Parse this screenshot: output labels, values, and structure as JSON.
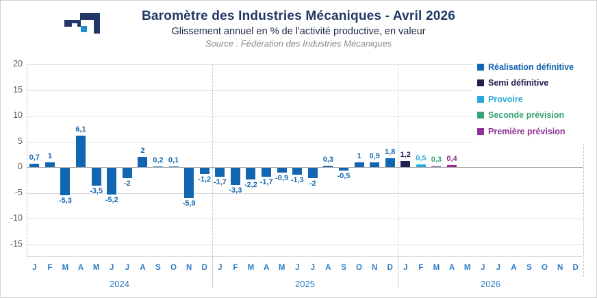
{
  "header": {
    "title": "Baromètre des Industries Mécaniques - Avril 2026",
    "subtitle": "Glissement annuel en % de l'activité productive, en valeur",
    "source": "Source : Fédération des Industries Mécaniques"
  },
  "colors": {
    "realisation_definitive": "#1166b1",
    "semi_definitive": "#211e52",
    "provisoire": "#29a8e0",
    "seconde_prevision": "#36a476",
    "premiere_prevision": "#8c3191",
    "mars_2026_bar": "#9f81c4",
    "avril_2026_bar": "#a2259c",
    "axis_text": "#595959",
    "month_text": "#2e7cc3",
    "grid": "#dcdcdc",
    "zero_line": "#b0b0b0",
    "title_text": "#1f3864",
    "source_text": "#8a8a8a",
    "logo_navy": "#203768",
    "logo_blue": "#1d8fd1"
  },
  "legend": {
    "position": "top-right",
    "items": [
      {
        "label": "Réalisation définitive",
        "series": "Réalisation définitive",
        "color_key": "realisation_definitive"
      },
      {
        "label": "Semi définitive",
        "series": "Semi définitive",
        "color_key": "semi_definitive"
      },
      {
        "label": "Provoire",
        "series": "Provoire",
        "color_key": "provisoire"
      },
      {
        "label": "Seconde prévision",
        "series": "Seconde prévision",
        "color_key": "seconde_prevision"
      },
      {
        "label": "Première prévision",
        "series": "Première prévision",
        "color_key": "premiere_prevision"
      }
    ]
  },
  "chart_data": {
    "type": "bar",
    "title": "Baromètre des Industries Mécaniques - Avril 2026",
    "subtitle": "Glissement annuel en % de l'activité productive, en valeur",
    "ylabel": "Glissement annuel en %",
    "yticks": [
      20,
      15,
      10,
      5,
      0,
      -5,
      -10,
      -15
    ],
    "ylim": [
      -17.3,
      20
    ],
    "grid": true,
    "legend_position": "top-right",
    "year_groups": [
      "2024",
      "2025",
      "2026"
    ],
    "months": [
      {
        "year": "2024",
        "month": "J",
        "value": 0.7,
        "label": "0,7",
        "series": "Réalisation définitive"
      },
      {
        "year": "2024",
        "month": "F",
        "value": 1,
        "label": "1",
        "series": "Réalisation définitive"
      },
      {
        "year": "2024",
        "month": "M",
        "value": -5.3,
        "label": "-5,3",
        "series": "Réalisation définitive"
      },
      {
        "year": "2024",
        "month": "A",
        "value": 6.1,
        "label": "6,1",
        "series": "Réalisation définitive"
      },
      {
        "year": "2024",
        "month": "M",
        "value": -3.5,
        "label": "-3,5",
        "series": "Réalisation définitive"
      },
      {
        "year": "2024",
        "month": "J",
        "value": -5.2,
        "label": "-5,2",
        "series": "Réalisation définitive"
      },
      {
        "year": "2024",
        "month": "J",
        "value": -2,
        "label": "-2",
        "series": "Réalisation définitive"
      },
      {
        "year": "2024",
        "month": "A",
        "value": 2,
        "label": "2",
        "series": "Réalisation définitive"
      },
      {
        "year": "2024",
        "month": "S",
        "value": 0.2,
        "label": "0,2",
        "series": "Réalisation définitive"
      },
      {
        "year": "2024",
        "month": "O",
        "value": 0.1,
        "label": "0,1",
        "series": "Réalisation définitive"
      },
      {
        "year": "2024",
        "month": "N",
        "value": -5.9,
        "label": "-5,9",
        "series": "Réalisation définitive"
      },
      {
        "year": "2024",
        "month": "D",
        "value": -1.2,
        "label": "-1,2",
        "series": "Réalisation définitive"
      },
      {
        "year": "2025",
        "month": "J",
        "value": -1.7,
        "label": "-1,7",
        "series": "Réalisation définitive"
      },
      {
        "year": "2025",
        "month": "F",
        "value": -3.3,
        "label": "-3,3",
        "series": "Réalisation définitive"
      },
      {
        "year": "2025",
        "month": "M",
        "value": -2.2,
        "label": "-2,2",
        "series": "Réalisation définitive"
      },
      {
        "year": "2025",
        "month": "A",
        "value": -1.7,
        "label": "-1,7",
        "series": "Réalisation définitive"
      },
      {
        "year": "2025",
        "month": "M",
        "value": -0.9,
        "label": "-0,9",
        "series": "Réalisation définitive"
      },
      {
        "year": "2025",
        "month": "J",
        "value": -1.3,
        "label": "-1,3",
        "series": "Réalisation définitive"
      },
      {
        "year": "2025",
        "month": "J",
        "value": -2,
        "label": "-2",
        "series": "Réalisation définitive"
      },
      {
        "year": "2025",
        "month": "A",
        "value": 0.3,
        "label": "0,3",
        "series": "Réalisation définitive"
      },
      {
        "year": "2025",
        "month": "S",
        "value": -0.5,
        "label": "-0,5",
        "series": "Réalisation définitive"
      },
      {
        "year": "2025",
        "month": "O",
        "value": 1,
        "label": "1",
        "series": "Réalisation définitive"
      },
      {
        "year": "2025",
        "month": "N",
        "value": 0.9,
        "label": "0,9",
        "series": "Réalisation définitive"
      },
      {
        "year": "2025",
        "month": "D",
        "value": 1.8,
        "label": "1,8",
        "series": "Réalisation définitive"
      },
      {
        "year": "2026",
        "month": "J",
        "value": 1.2,
        "label": "1,2",
        "series": "Semi définitive"
      },
      {
        "year": "2026",
        "month": "F",
        "value": 0.5,
        "label": "0,5",
        "series": "Provoire"
      },
      {
        "year": "2026",
        "month": "M",
        "value": 0.3,
        "label": "0,3",
        "series": "Seconde prévision",
        "bar_color": "#9f81c4"
      },
      {
        "year": "2026",
        "month": "A",
        "value": 0.4,
        "label": "0,4",
        "series": "Première prévision",
        "bar_color": "#a2259c"
      },
      {
        "year": "2026",
        "month": "M"
      },
      {
        "year": "2026",
        "month": "J"
      },
      {
        "year": "2026",
        "month": "J"
      },
      {
        "year": "2026",
        "month": "A"
      },
      {
        "year": "2026",
        "month": "S"
      },
      {
        "year": "2026",
        "month": "O"
      },
      {
        "year": "2026",
        "month": "N"
      },
      {
        "year": "2026",
        "month": "D"
      }
    ]
  }
}
